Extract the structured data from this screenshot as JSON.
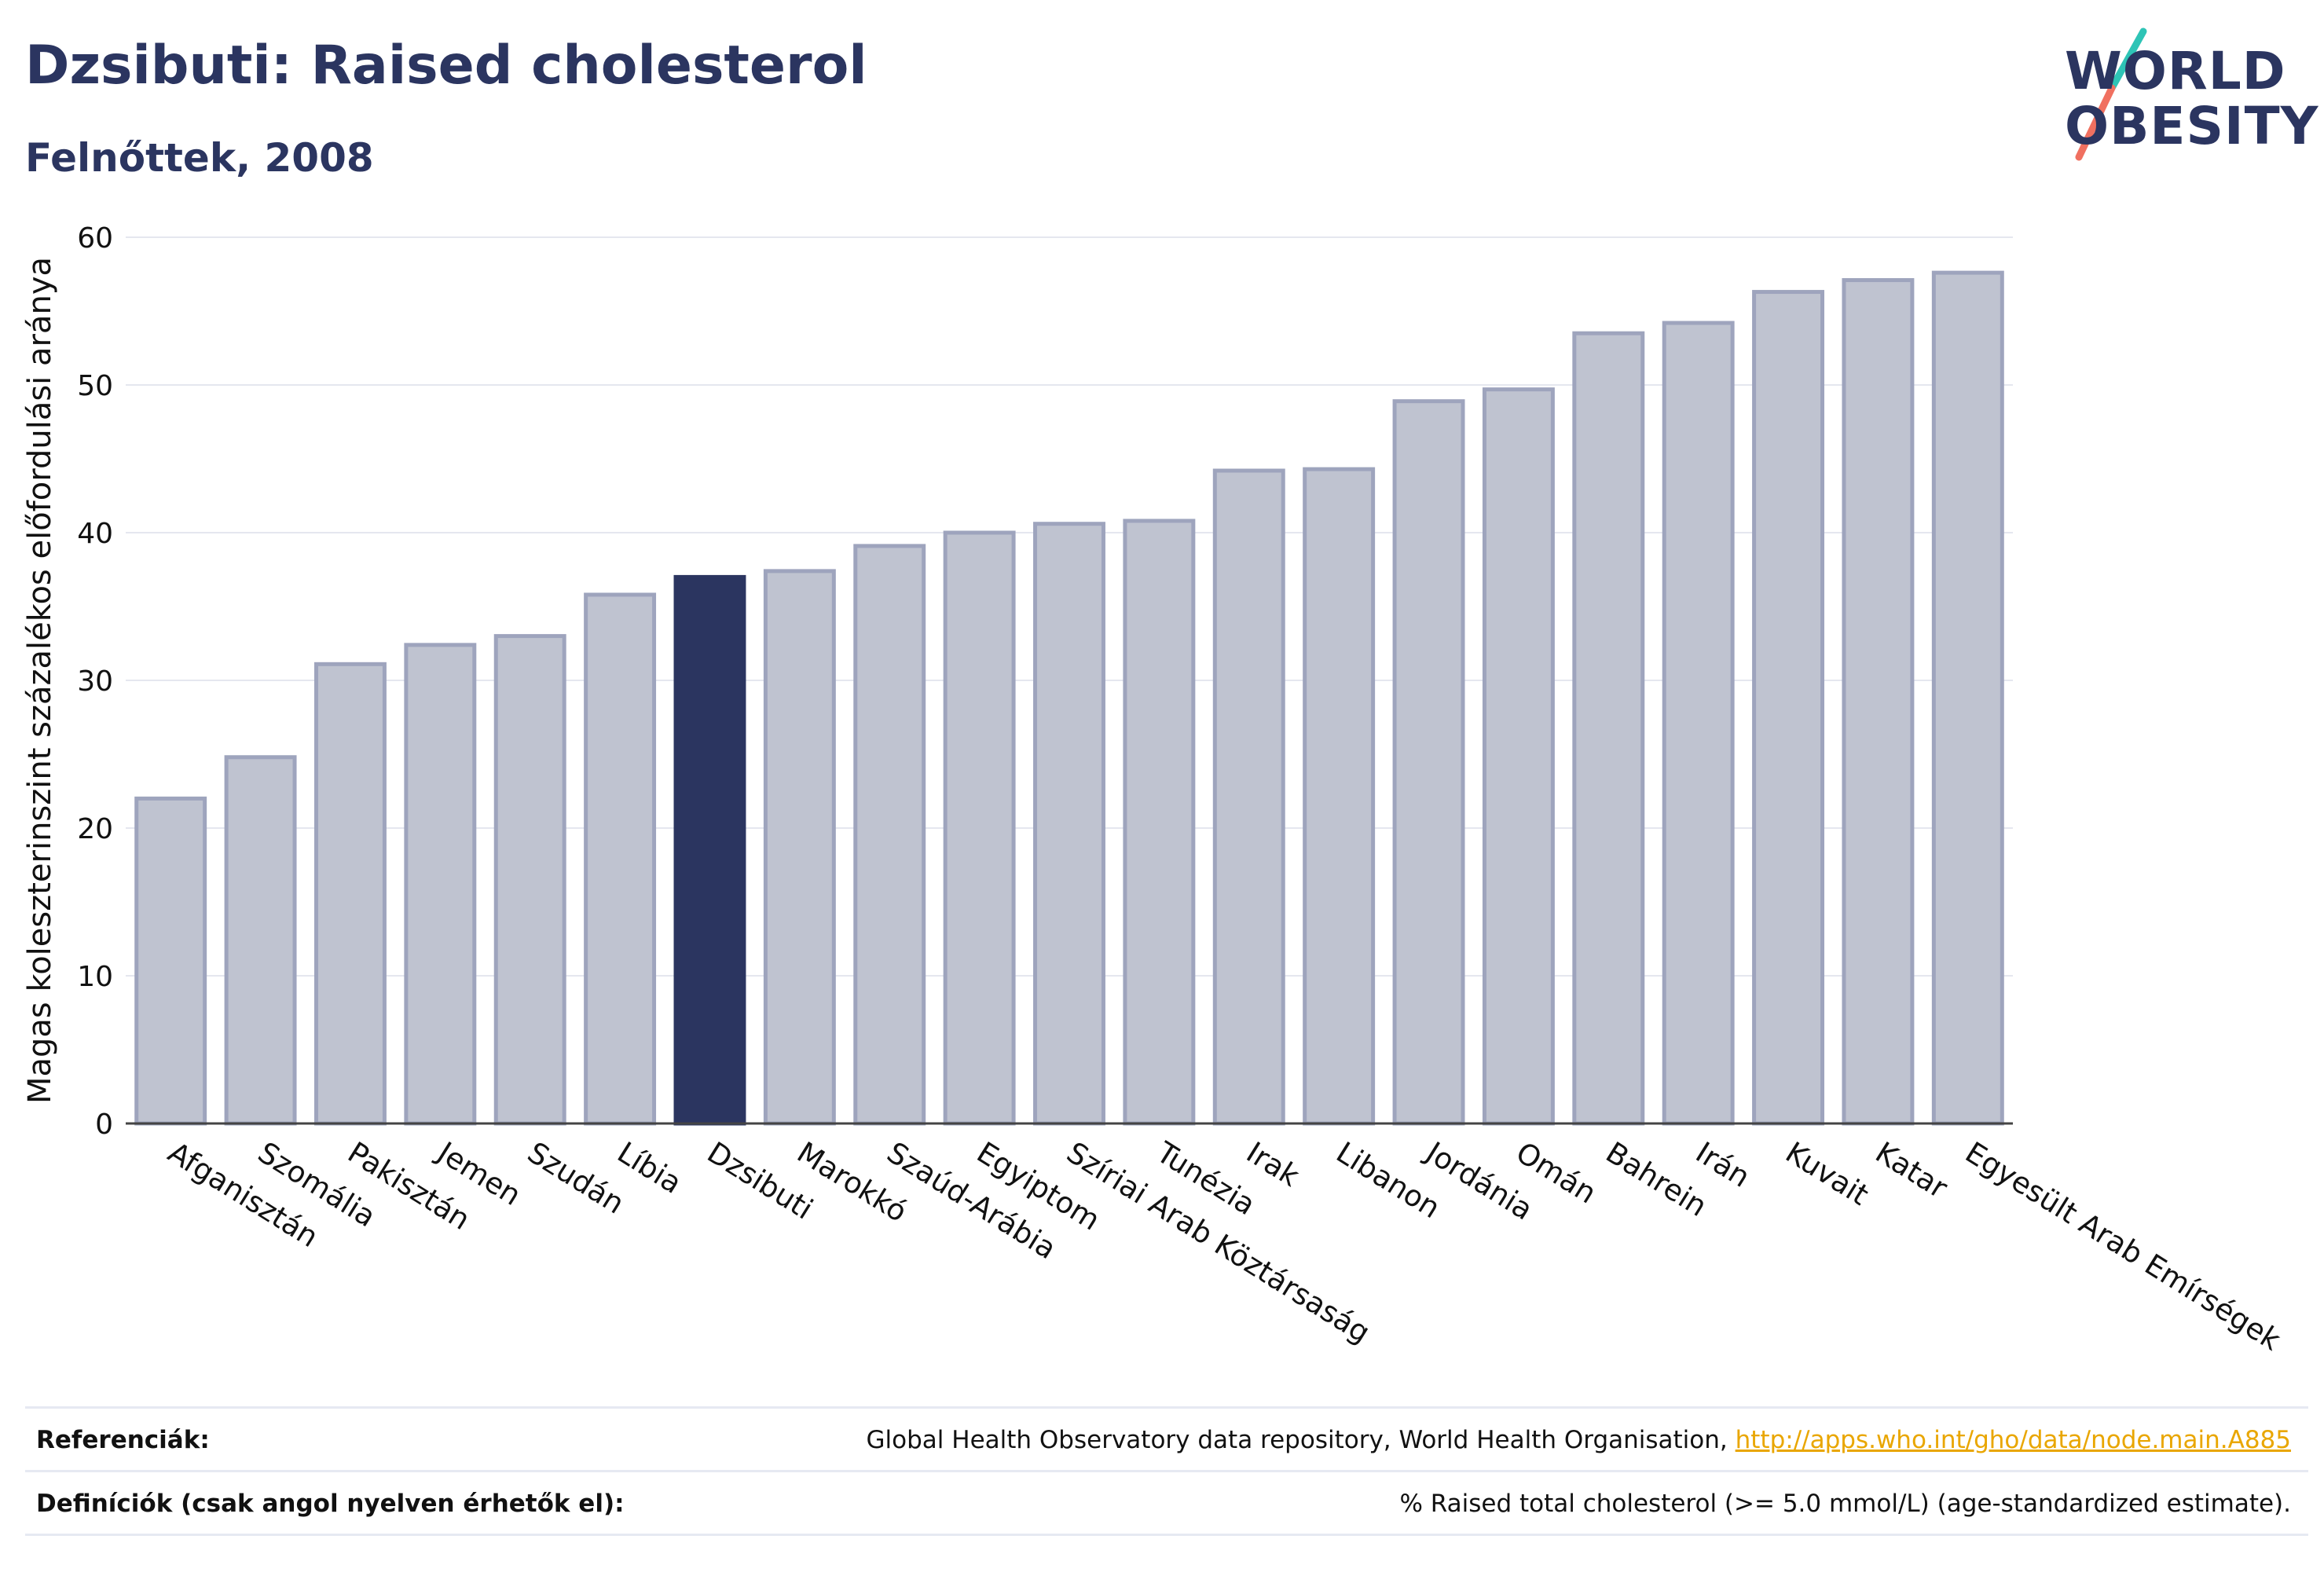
{
  "header": {
    "title": "Dzsibuti: Raised cholesterol",
    "subtitle": "Felnőttek, 2008"
  },
  "logo": {
    "line1": "WORLD",
    "line2": "OBESITY",
    "accent_colors": [
      "#2ec4b6",
      "#f07060"
    ]
  },
  "colors": {
    "highlight": "#2b3560",
    "bar_fill": "#bfc3d0",
    "bar_stroke": "#9ea4bd",
    "link": "#e9a600"
  },
  "chart_data": {
    "type": "bar",
    "ylabel": "Magas koleszterinszint százalékos előfordulási aránya",
    "ylim": [
      0,
      60
    ],
    "yticks": [
      0,
      10,
      20,
      30,
      40,
      50,
      60
    ],
    "grid": true,
    "highlight_category": "Dzsibuti",
    "categories": [
      "Afganisztán",
      "Szomália",
      "Pakisztán",
      "Jemen",
      "Szudán",
      "Líbia",
      "Dzsibuti",
      "Marokkó",
      "Szaúd-Arábia",
      "Egyiptom",
      "Szíriai Arab Köztársaság",
      "Tunézia",
      "Irak",
      "Libanon",
      "Jordánia",
      "Omán",
      "Bahrein",
      "Irán",
      "Kuvait",
      "Katar",
      "Egyesült Arab Emírségek"
    ],
    "values": [
      22.0,
      24.8,
      31.1,
      32.4,
      33.0,
      35.8,
      37.0,
      37.4,
      39.1,
      40.0,
      40.6,
      40.8,
      44.2,
      44.3,
      48.9,
      49.7,
      53.5,
      54.2,
      56.3,
      57.1,
      57.6
    ]
  },
  "footer": {
    "references_label": "Referenciák:",
    "references_text": "Global Health Observatory data repository, World Health Organisation,",
    "references_link": "http://apps.who.int/gho/data/node.main.A885",
    "definitions_label": "Definíciók (csak angol nyelven érhetők el):",
    "definitions_text": "% Raised total cholesterol (>= 5.0 mmol/L) (age-standardized estimate)."
  }
}
